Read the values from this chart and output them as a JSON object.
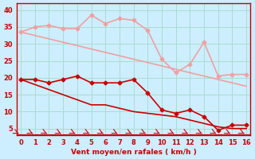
{
  "x": [
    0,
    1,
    2,
    3,
    4,
    5,
    6,
    7,
    8,
    9,
    10,
    11,
    12,
    13,
    14,
    15,
    16
  ],
  "line1_y": [
    33.5,
    35.0,
    35.5,
    34.5,
    34.5,
    38.5,
    36.0,
    37.5,
    37.0,
    34.0,
    25.5,
    21.5,
    24.0,
    30.5,
    20.5,
    21.0,
    21.0
  ],
  "line2_y": [
    33.5,
    32.5,
    31.5,
    30.5,
    29.5,
    28.5,
    27.5,
    26.5,
    25.5,
    24.5,
    23.5,
    22.5,
    21.5,
    20.5,
    19.5,
    18.5,
    17.5
  ],
  "line3_y": [
    19.5,
    19.5,
    18.5,
    19.5,
    20.5,
    18.5,
    18.5,
    18.5,
    19.5,
    15.5,
    10.5,
    9.5,
    10.5,
    8.5,
    4.5,
    6.0,
    6.0
  ],
  "line4_y": [
    19.5,
    18.0,
    16.5,
    15.0,
    13.5,
    12.0,
    12.0,
    11.0,
    10.0,
    9.5,
    9.0,
    8.5,
    7.5,
    6.5,
    5.5,
    5.0,
    5.0
  ],
  "line1_color": "#f0a0a0",
  "line2_color": "#f0a0a0",
  "line3_color": "#cc0000",
  "line4_color": "#cc0000",
  "bg_color": "#cceeff",
  "grid_color": "#aaddcc",
  "axis_color": "#cc0000",
  "xlabel": "Vent moyen/en rafales ( km/h )",
  "ylabel_ticks": [
    5,
    10,
    15,
    20,
    25,
    30,
    35,
    40
  ],
  "xlim": [
    -0.3,
    16.3
  ],
  "ylim": [
    3,
    42
  ],
  "arrow_color": "#cc0000"
}
